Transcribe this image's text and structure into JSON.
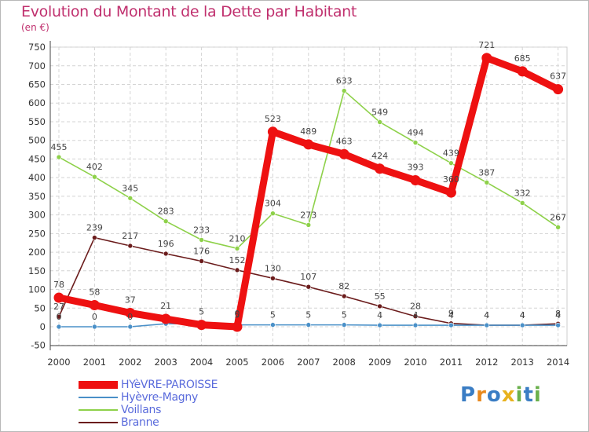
{
  "chart_data": {
    "type": "line",
    "title": "Evolution du Montant de la Dette par Habitant",
    "subtitle": "(en €)",
    "categories": [
      "2000",
      "2001",
      "2002",
      "2003",
      "2004",
      "2005",
      "2006",
      "2007",
      "2008",
      "2009",
      "2010",
      "2011",
      "2012",
      "2013",
      "2014"
    ],
    "y_ticks": [
      -50,
      0,
      50,
      100,
      150,
      200,
      250,
      300,
      350,
      400,
      450,
      500,
      550,
      600,
      650,
      700,
      750
    ],
    "ylim": [
      -50,
      750
    ],
    "grid": true,
    "legend_position": "bottom-left",
    "series": [
      {
        "name": "HYèVRE-PAROISSE",
        "color": "#ee1111",
        "values": [
          78,
          58,
          37,
          21,
          5,
          0,
          523,
          489,
          463,
          424,
          393,
          360,
          721,
          685,
          637
        ]
      },
      {
        "name": "Hyèvre-Magny",
        "color": "#4a90c8",
        "values": [
          0,
          0,
          0,
          8,
          8,
          5,
          5,
          5,
          5,
          4,
          4,
          4,
          4,
          4,
          4
        ]
      },
      {
        "name": "Voillans",
        "color": "#8ed14a",
        "values": [
          455,
          402,
          345,
          283,
          233,
          210,
          304,
          273,
          633,
          549,
          494,
          439,
          387,
          332,
          267
        ]
      },
      {
        "name": "Branne",
        "color": "#6b1c1c",
        "values": [
          27,
          239,
          217,
          196,
          176,
          152,
          130,
          107,
          82,
          55,
          28,
          9,
          4,
          4,
          8
        ]
      }
    ],
    "data_labels": [
      {
        "series": 0,
        "labels": [
          "78",
          "58",
          "37",
          "21",
          "5",
          "0",
          "523",
          "489",
          "463",
          "424",
          "393",
          "360",
          "721",
          "685",
          "637"
        ]
      },
      {
        "series": 1,
        "labels": [
          "0",
          "0",
          "0",
          "",
          "",
          "5",
          "5",
          "5",
          "5",
          "4",
          "4",
          "4",
          "4",
          "4",
          "4"
        ]
      },
      {
        "series": 2,
        "labels": [
          "455",
          "402",
          "345",
          "283",
          "233",
          "210",
          "304",
          "273",
          "633",
          "549",
          "494",
          "439",
          "387",
          "332",
          "267"
        ]
      },
      {
        "series": 3,
        "labels": [
          "27",
          "239",
          "217",
          "196",
          "176",
          "152",
          "130",
          "107",
          "82",
          "55",
          "28",
          "9",
          "4",
          "4",
          "8"
        ]
      }
    ]
  },
  "logo": {
    "text": "Proxiti",
    "letters": [
      "P",
      "r",
      "o",
      "x",
      "i",
      "t",
      "i"
    ],
    "colors": [
      "#3a7dc4",
      "#e8891e",
      "#3a7dc4",
      "#e8b21e",
      "#6ab04c",
      "#3a7dc4",
      "#6ab04c"
    ]
  }
}
